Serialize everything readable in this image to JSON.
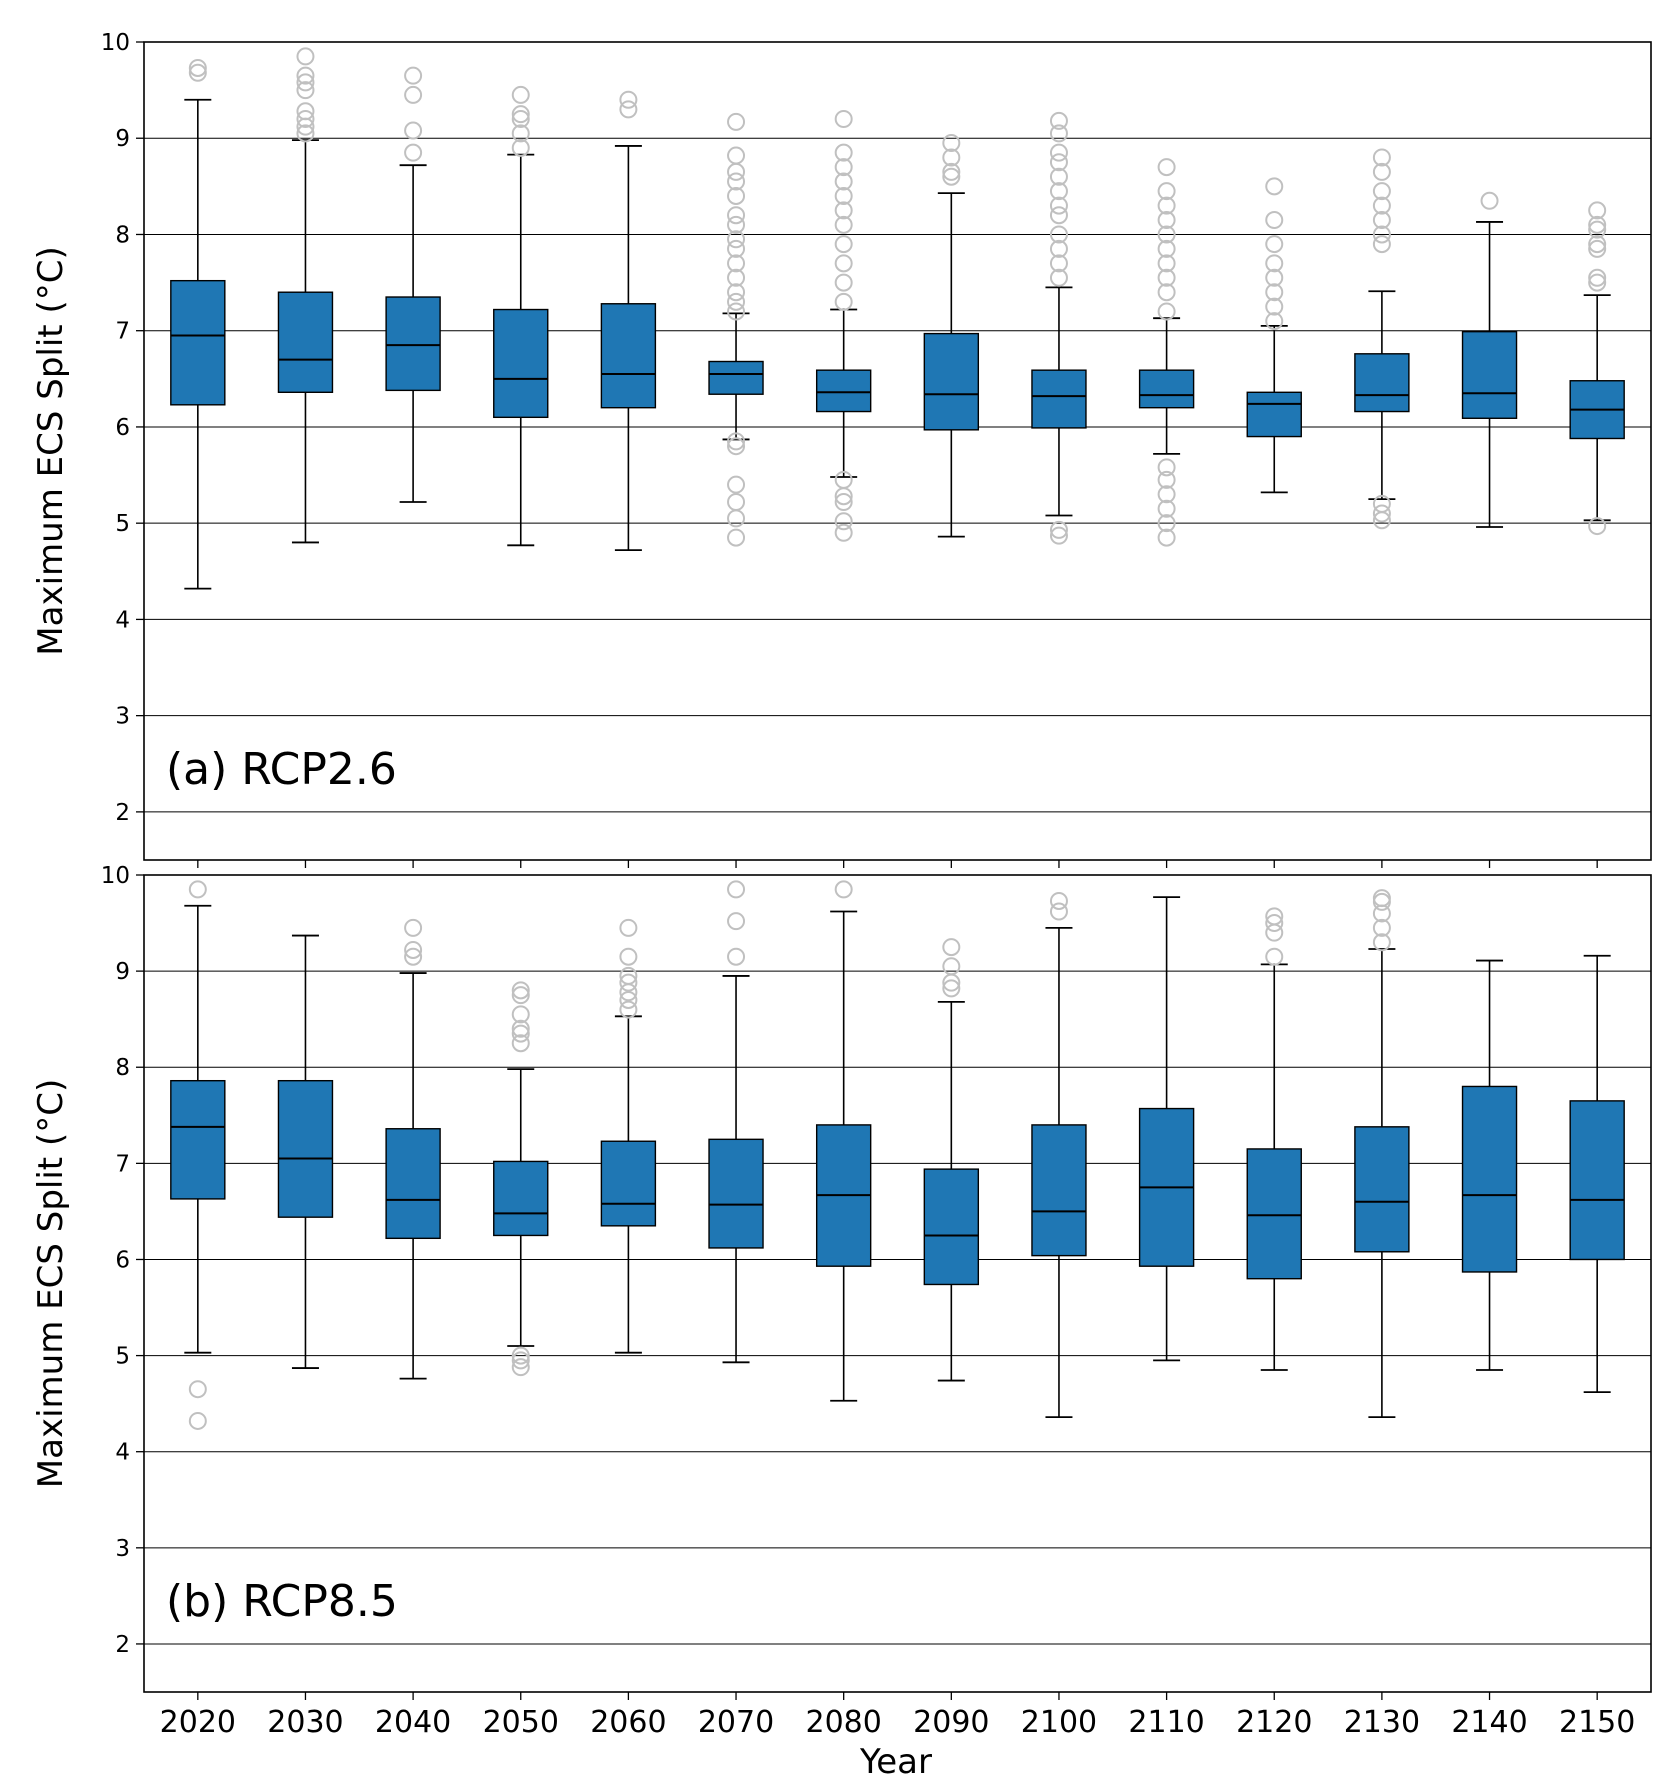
{
  "figure": {
    "xlabel": "Year"
  },
  "colors": {
    "box_fill": "#1f77b4",
    "outlier": "#c0c0c0",
    "grid": "#000000"
  },
  "chart_data": [
    {
      "type": "boxplot",
      "panel_label": "(a) RCP2.6",
      "xlabel": "",
      "ylabel": "Maximum ECS Split ($^\\circ$C)",
      "ylim": [
        1.5,
        10
      ],
      "yticks": [
        2,
        3,
        4,
        5,
        6,
        7,
        8,
        9,
        10
      ],
      "grid": "horizontal",
      "categories": [
        "2020",
        "2030",
        "2040",
        "2050",
        "2060",
        "2070",
        "2080",
        "2090",
        "2100",
        "2110",
        "2120",
        "2130",
        "2140",
        "2150"
      ],
      "boxes": [
        {
          "whislo": 4.32,
          "q1": 6.23,
          "med": 6.95,
          "q3": 7.52,
          "whishi": 9.4,
          "fliers": [
            9.68,
            9.73
          ]
        },
        {
          "whislo": 4.8,
          "q1": 6.36,
          "med": 6.7,
          "q3": 7.4,
          "whishi": 8.98,
          "fliers": [
            9.05,
            9.12,
            9.2,
            9.28,
            9.5,
            9.58,
            9.65,
            9.85
          ]
        },
        {
          "whislo": 5.22,
          "q1": 6.38,
          "med": 6.85,
          "q3": 7.35,
          "whishi": 8.72,
          "fliers": [
            8.85,
            9.08,
            9.45,
            9.65
          ]
        },
        {
          "whislo": 4.77,
          "q1": 6.1,
          "med": 6.5,
          "q3": 7.22,
          "whishi": 8.83,
          "fliers": [
            8.9,
            9.05,
            9.2,
            9.25,
            9.45
          ]
        },
        {
          "whislo": 4.72,
          "q1": 6.2,
          "med": 6.55,
          "q3": 7.28,
          "whishi": 8.92,
          "fliers": [
            9.3,
            9.4
          ]
        },
        {
          "whislo": 5.87,
          "q1": 6.34,
          "med": 6.55,
          "q3": 6.68,
          "whishi": 7.18,
          "fliers": [
            4.85,
            5.05,
            5.22,
            5.4,
            5.8,
            5.85,
            7.2,
            7.3,
            7.4,
            7.55,
            7.7,
            7.85,
            7.95,
            8.1,
            8.2,
            8.4,
            8.55,
            8.65,
            8.82,
            9.17
          ]
        },
        {
          "whislo": 5.48,
          "q1": 6.16,
          "med": 6.36,
          "q3": 6.59,
          "whishi": 7.22,
          "fliers": [
            4.9,
            5.02,
            5.22,
            5.28,
            5.45,
            7.3,
            7.5,
            7.7,
            7.9,
            8.1,
            8.25,
            8.4,
            8.55,
            8.7,
            8.85,
            9.2
          ]
        },
        {
          "whislo": 4.86,
          "q1": 5.97,
          "med": 6.34,
          "q3": 6.97,
          "whishi": 8.43,
          "fliers": [
            8.6,
            8.65,
            8.8,
            8.95
          ]
        },
        {
          "whislo": 5.08,
          "q1": 5.99,
          "med": 6.32,
          "q3": 6.59,
          "whishi": 7.45,
          "fliers": [
            4.87,
            4.93,
            7.55,
            7.7,
            7.85,
            8.0,
            8.2,
            8.3,
            8.45,
            8.6,
            8.75,
            8.85,
            9.05,
            9.18
          ]
        },
        {
          "whislo": 5.72,
          "q1": 6.2,
          "med": 6.33,
          "q3": 6.59,
          "whishi": 7.13,
          "fliers": [
            4.85,
            5.0,
            5.15,
            5.3,
            5.45,
            5.58,
            7.2,
            7.4,
            7.55,
            7.7,
            7.85,
            8.0,
            8.15,
            8.3,
            8.45,
            8.7
          ]
        },
        {
          "whislo": 5.32,
          "q1": 5.9,
          "med": 6.24,
          "q3": 6.36,
          "whishi": 7.05,
          "fliers": [
            7.1,
            7.25,
            7.4,
            7.55,
            7.7,
            7.9,
            8.15,
            8.5
          ]
        },
        {
          "whislo": 5.25,
          "q1": 6.16,
          "med": 6.33,
          "q3": 6.76,
          "whishi": 7.41,
          "fliers": [
            5.03,
            5.1,
            5.2,
            7.9,
            8.0,
            8.15,
            8.3,
            8.45,
            8.65,
            8.8
          ]
        },
        {
          "whislo": 4.96,
          "q1": 6.09,
          "med": 6.35,
          "q3": 6.99,
          "whishi": 8.13,
          "fliers": [
            8.35
          ]
        },
        {
          "whislo": 5.03,
          "q1": 5.88,
          "med": 6.18,
          "q3": 6.48,
          "whishi": 7.37,
          "fliers": [
            4.97,
            7.5,
            7.55,
            7.85,
            7.9,
            8.05,
            8.1,
            8.25
          ]
        }
      ]
    },
    {
      "type": "boxplot",
      "panel_label": "(b) RCP8.5",
      "xlabel": "Year",
      "ylabel": "Maximum ECS Split ($^\\circ$C)",
      "ylim": [
        1.5,
        10
      ],
      "yticks": [
        2,
        3,
        4,
        5,
        6,
        7,
        8,
        9,
        10
      ],
      "grid": "horizontal",
      "categories": [
        "2020",
        "2030",
        "2040",
        "2050",
        "2060",
        "2070",
        "2080",
        "2090",
        "2100",
        "2110",
        "2120",
        "2130",
        "2140",
        "2150"
      ],
      "boxes": [
        {
          "whislo": 5.03,
          "q1": 6.63,
          "med": 7.38,
          "q3": 7.86,
          "whishi": 9.68,
          "fliers": [
            4.32,
            4.65,
            9.85
          ]
        },
        {
          "whislo": 4.87,
          "q1": 6.44,
          "med": 7.05,
          "q3": 7.86,
          "whishi": 9.37,
          "fliers": []
        },
        {
          "whislo": 4.76,
          "q1": 6.22,
          "med": 6.62,
          "q3": 7.36,
          "whishi": 8.98,
          "fliers": [
            9.15,
            9.22,
            9.45
          ]
        },
        {
          "whislo": 5.1,
          "q1": 6.25,
          "med": 6.48,
          "q3": 7.02,
          "whishi": 7.98,
          "fliers": [
            4.88,
            4.95,
            5.0,
            8.25,
            8.35,
            8.4,
            8.55,
            8.75,
            8.8
          ]
        },
        {
          "whislo": 5.03,
          "q1": 6.35,
          "med": 6.58,
          "q3": 7.23,
          "whishi": 8.53,
          "fliers": [
            8.6,
            8.7,
            8.78,
            8.88,
            8.95,
            9.15,
            9.45
          ]
        },
        {
          "whislo": 4.93,
          "q1": 6.12,
          "med": 6.57,
          "q3": 7.25,
          "whishi": 8.95,
          "fliers": [
            9.15,
            9.52,
            9.85
          ]
        },
        {
          "whislo": 4.53,
          "q1": 5.93,
          "med": 6.67,
          "q3": 7.4,
          "whishi": 9.62,
          "fliers": [
            9.85
          ]
        },
        {
          "whislo": 4.74,
          "q1": 5.74,
          "med": 6.25,
          "q3": 6.94,
          "whishi": 8.68,
          "fliers": [
            8.82,
            8.88,
            9.05,
            9.25
          ]
        },
        {
          "whislo": 4.36,
          "q1": 6.04,
          "med": 6.5,
          "q3": 7.4,
          "whishi": 9.45,
          "fliers": [
            9.62,
            9.73
          ]
        },
        {
          "whislo": 4.95,
          "q1": 5.93,
          "med": 6.75,
          "q3": 7.57,
          "whishi": 9.77,
          "fliers": []
        },
        {
          "whislo": 4.85,
          "q1": 5.8,
          "med": 6.46,
          "q3": 7.15,
          "whishi": 9.07,
          "fliers": [
            9.15,
            9.4,
            9.5,
            9.57
          ]
        },
        {
          "whislo": 4.36,
          "q1": 6.08,
          "med": 6.6,
          "q3": 7.38,
          "whishi": 9.23,
          "fliers": [
            9.3,
            9.45,
            9.6,
            9.72,
            9.76
          ]
        },
        {
          "whislo": 4.85,
          "q1": 5.87,
          "med": 6.67,
          "q3": 7.8,
          "whishi": 9.11,
          "fliers": []
        },
        {
          "whislo": 4.62,
          "q1": 6.0,
          "med": 6.62,
          "q3": 7.65,
          "whishi": 9.16,
          "fliers": []
        }
      ]
    }
  ]
}
